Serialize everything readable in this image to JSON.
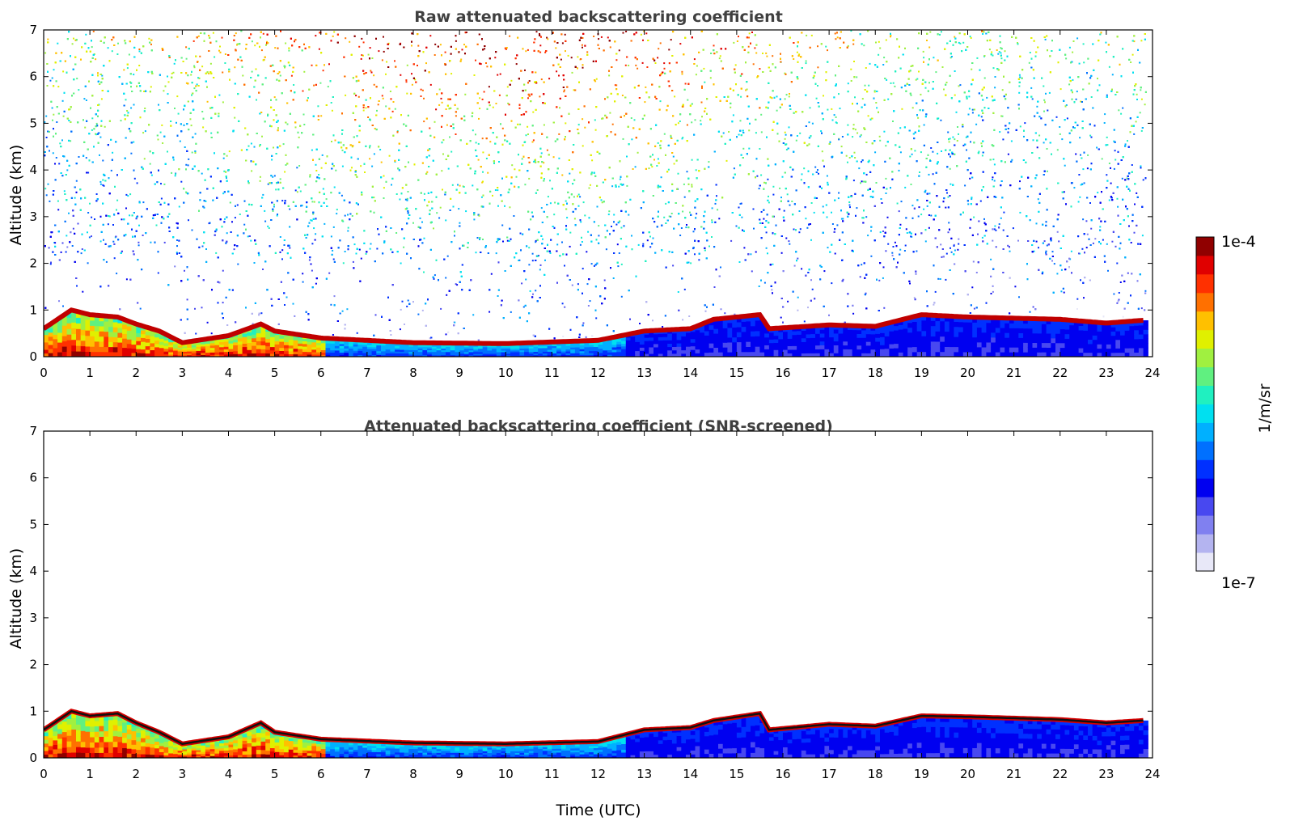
{
  "chart_data": [
    {
      "type": "heatmap",
      "title": "Raw attenuated backscattering coefficient",
      "xlabel": "",
      "ylabel": "Altitude (km)",
      "xlim": [
        0,
        24
      ],
      "ylim": [
        0,
        7
      ],
      "x_ticks": [
        "0",
        "1",
        "2",
        "3",
        "4",
        "5",
        "6",
        "7",
        "8",
        "9",
        "10",
        "11",
        "12",
        "13",
        "14",
        "15",
        "16",
        "17",
        "18",
        "19",
        "20",
        "21",
        "22",
        "23",
        "24"
      ],
      "y_ticks": [
        "0",
        "1",
        "2",
        "3",
        "4",
        "5",
        "6",
        "7"
      ],
      "colorscale": "jet",
      "layer_top_km": [
        {
          "x": 0.0,
          "y": 0.6
        },
        {
          "x": 0.6,
          "y": 1.0
        },
        {
          "x": 1.0,
          "y": 0.9
        },
        {
          "x": 1.6,
          "y": 0.85
        },
        {
          "x": 2.0,
          "y": 0.7
        },
        {
          "x": 2.5,
          "y": 0.55
        },
        {
          "x": 3.0,
          "y": 0.3
        },
        {
          "x": 4.0,
          "y": 0.45
        },
        {
          "x": 4.7,
          "y": 0.7
        },
        {
          "x": 5.0,
          "y": 0.55
        },
        {
          "x": 6.0,
          "y": 0.4
        },
        {
          "x": 8.0,
          "y": 0.3
        },
        {
          "x": 10.0,
          "y": 0.28
        },
        {
          "x": 12.0,
          "y": 0.35
        },
        {
          "x": 13.0,
          "y": 0.55
        },
        {
          "x": 14.0,
          "y": 0.6
        },
        {
          "x": 14.5,
          "y": 0.8
        },
        {
          "x": 15.5,
          "y": 0.9
        },
        {
          "x": 15.7,
          "y": 0.6
        },
        {
          "x": 17.0,
          "y": 0.68
        },
        {
          "x": 18.0,
          "y": 0.65
        },
        {
          "x": 19.0,
          "y": 0.9
        },
        {
          "x": 20.0,
          "y": 0.85
        },
        {
          "x": 22.0,
          "y": 0.8
        },
        {
          "x": 23.0,
          "y": 0.72
        },
        {
          "x": 23.8,
          "y": 0.78
        }
      ]
    },
    {
      "type": "heatmap",
      "title": "Attenuated backscattering coefficient (SNR-screened)",
      "xlabel": "Time (UTC)",
      "ylabel": "Altitude (km)",
      "xlim": [
        0,
        24
      ],
      "ylim": [
        0,
        7
      ],
      "x_ticks": [
        "0",
        "1",
        "2",
        "3",
        "4",
        "5",
        "6",
        "7",
        "8",
        "9",
        "10",
        "11",
        "12",
        "13",
        "14",
        "15",
        "16",
        "17",
        "18",
        "19",
        "20",
        "21",
        "22",
        "23",
        "24"
      ],
      "y_ticks": [
        "0",
        "1",
        "2",
        "3",
        "4",
        "5",
        "6",
        "7"
      ],
      "colorscale": "jet",
      "layer_top_km": [
        {
          "x": 0.0,
          "y": 0.6
        },
        {
          "x": 0.6,
          "y": 1.0
        },
        {
          "x": 1.0,
          "y": 0.9
        },
        {
          "x": 1.6,
          "y": 0.95
        },
        {
          "x": 2.0,
          "y": 0.75
        },
        {
          "x": 2.5,
          "y": 0.55
        },
        {
          "x": 3.0,
          "y": 0.3
        },
        {
          "x": 4.0,
          "y": 0.45
        },
        {
          "x": 4.7,
          "y": 0.75
        },
        {
          "x": 5.0,
          "y": 0.55
        },
        {
          "x": 6.0,
          "y": 0.4
        },
        {
          "x": 8.0,
          "y": 0.32
        },
        {
          "x": 10.0,
          "y": 0.3
        },
        {
          "x": 12.0,
          "y": 0.35
        },
        {
          "x": 13.0,
          "y": 0.6
        },
        {
          "x": 14.0,
          "y": 0.65
        },
        {
          "x": 14.5,
          "y": 0.8
        },
        {
          "x": 15.5,
          "y": 0.95
        },
        {
          "x": 15.7,
          "y": 0.6
        },
        {
          "x": 17.0,
          "y": 0.72
        },
        {
          "x": 18.0,
          "y": 0.68
        },
        {
          "x": 19.0,
          "y": 0.9
        },
        {
          "x": 20.0,
          "y": 0.88
        },
        {
          "x": 22.0,
          "y": 0.82
        },
        {
          "x": 23.0,
          "y": 0.75
        },
        {
          "x": 23.8,
          "y": 0.8
        }
      ]
    }
  ],
  "colorbar": {
    "max_label": "1e-4",
    "min_label": "1e-7",
    "unit_label": "1/m/sr",
    "colors": [
      "#e8e8f8",
      "#b4b4f0",
      "#8080f0",
      "#4848f0",
      "#0000f0",
      "#0030ff",
      "#0070ff",
      "#00b0ff",
      "#00e0f0",
      "#20f0c0",
      "#60f080",
      "#a0f040",
      "#e0f000",
      "#ffc000",
      "#ff7000",
      "#ff3000",
      "#e00000",
      "#900000"
    ]
  }
}
